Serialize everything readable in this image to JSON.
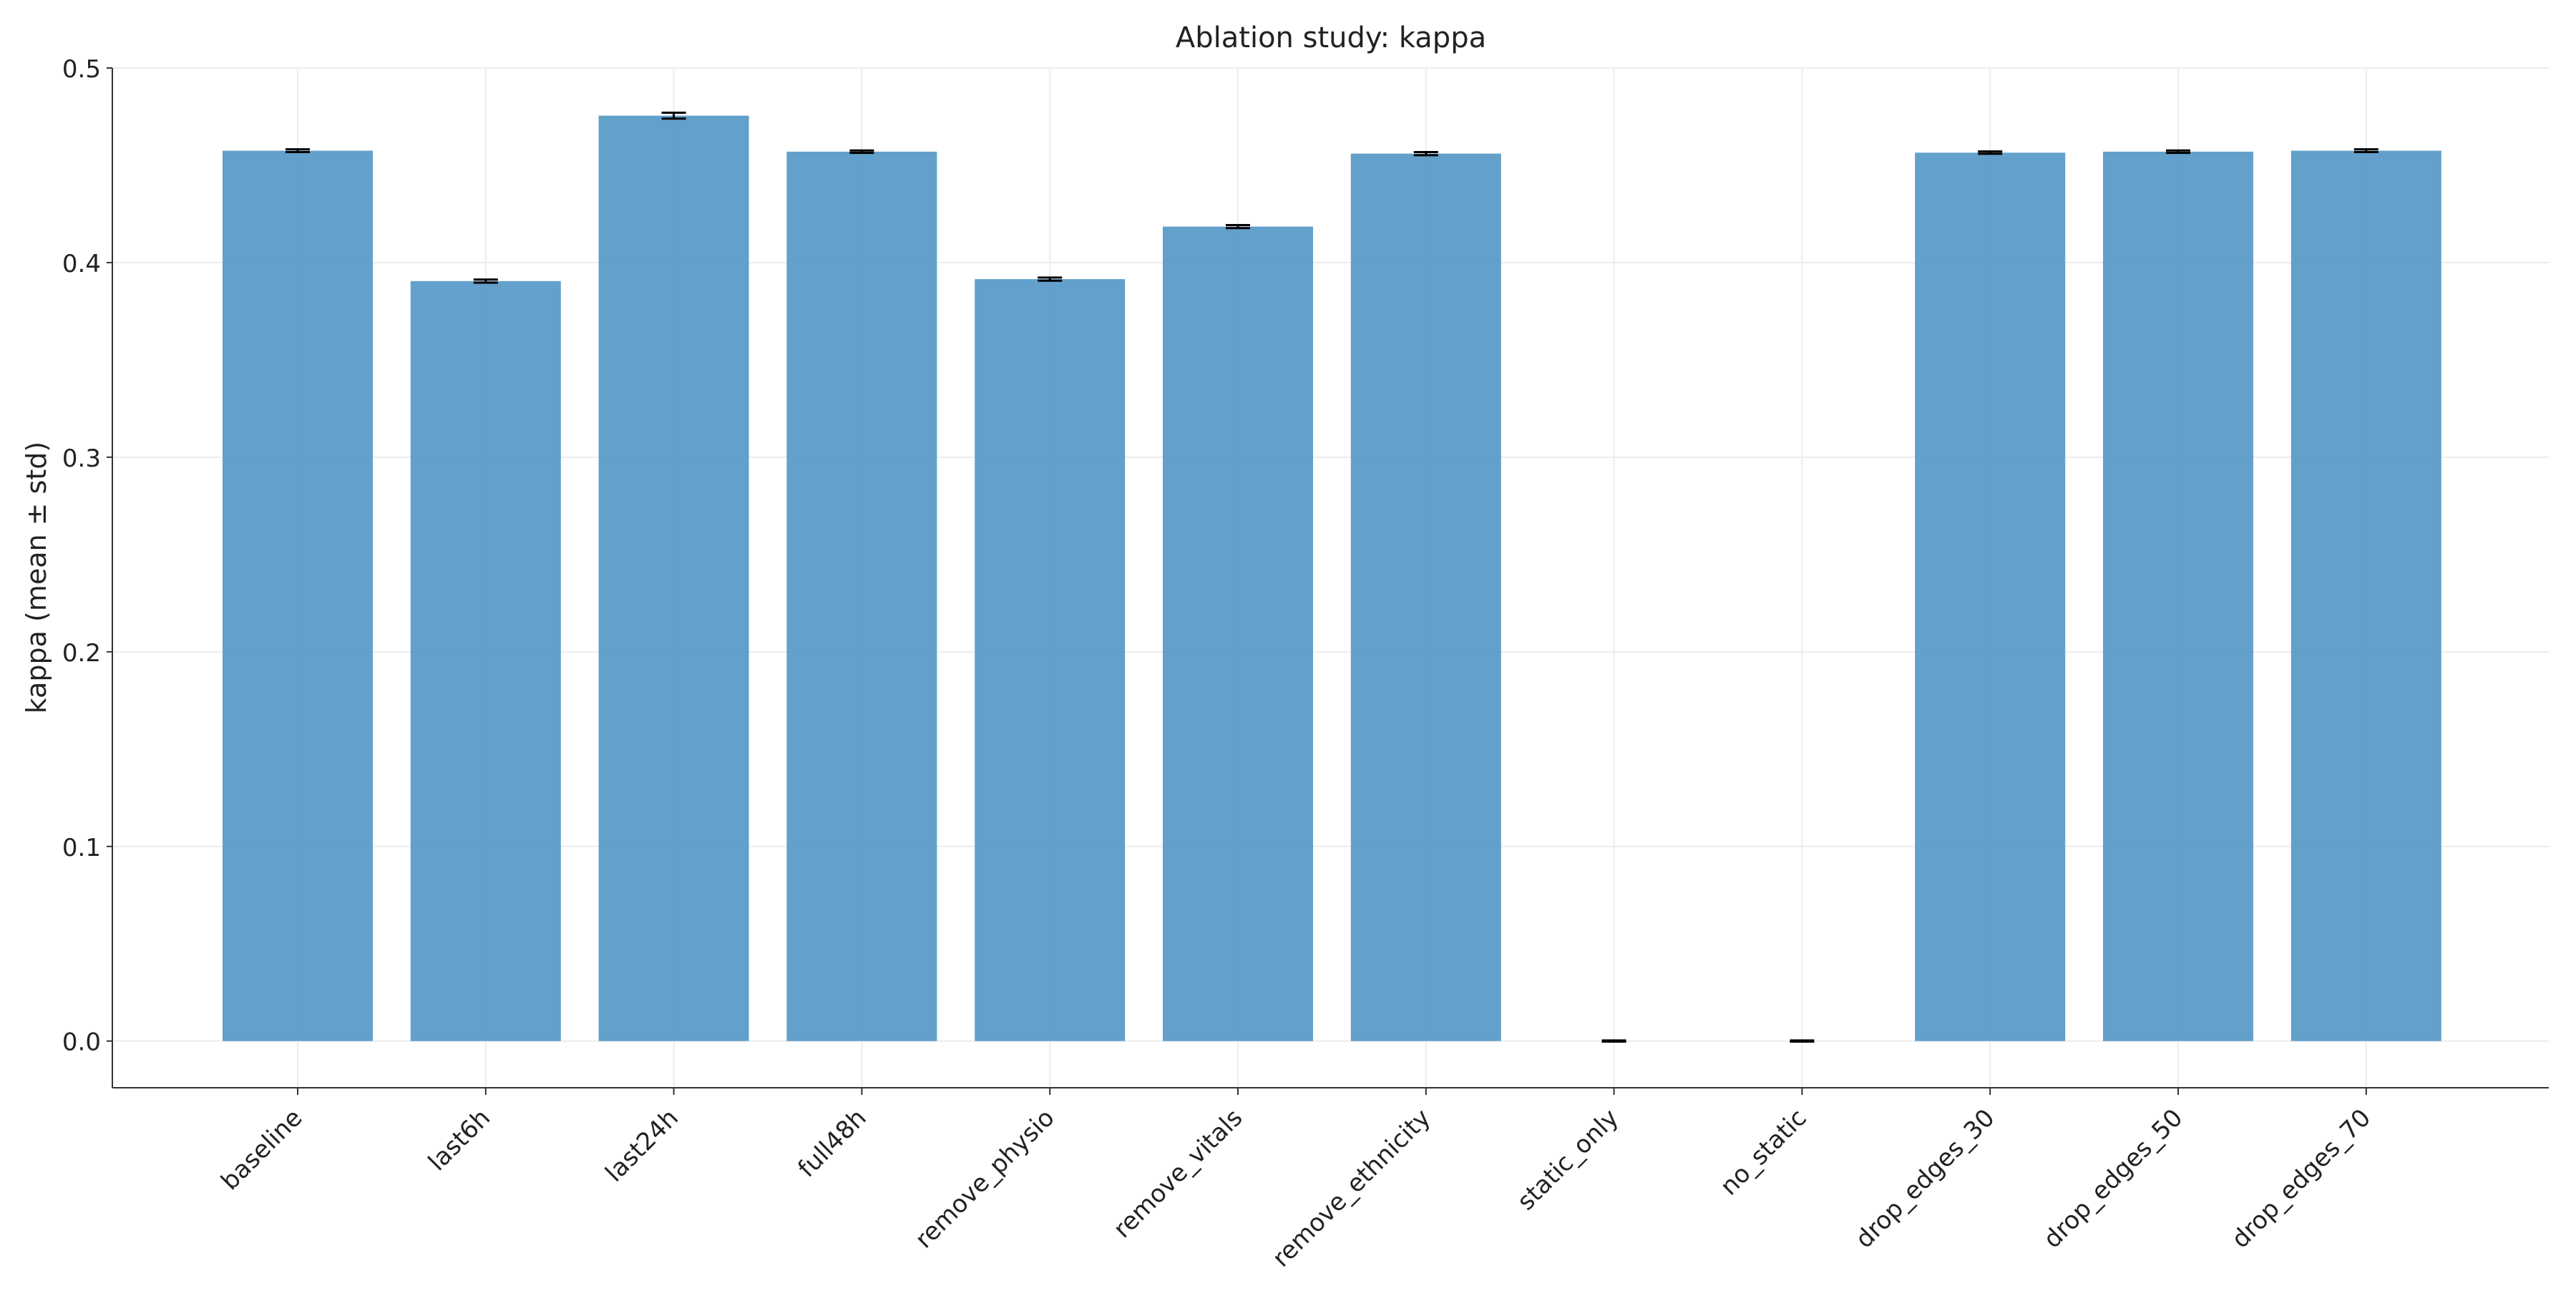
{
  "chart_data": {
    "type": "bar",
    "title": "Ablation study: kappa",
    "xlabel": "",
    "ylabel": "kappa (mean ± std)",
    "categories": [
      "baseline",
      "last6h",
      "last24h",
      "full48h",
      "remove_physio",
      "remove_vitals",
      "remove_ethnicity",
      "static_only",
      "no_static",
      "drop_edges_30",
      "drop_edges_50",
      "drop_edges_70"
    ],
    "values": [
      0.4575,
      0.3905,
      0.4755,
      0.457,
      0.3915,
      0.4185,
      0.456,
      0.0,
      0.0,
      0.4565,
      0.457,
      0.4575
    ],
    "errors": [
      0.0007,
      0.0008,
      0.0015,
      0.0006,
      0.0008,
      0.0008,
      0.0008,
      0.0003,
      0.0003,
      0.0006,
      0.0006,
      0.0007
    ],
    "ylim": [
      -0.024,
      0.5
    ],
    "yticks": [
      0.0,
      0.1,
      0.2,
      0.3,
      0.4,
      0.5
    ],
    "ytick_labels": [
      "0.0",
      "0.1",
      "0.2",
      "0.3",
      "0.4",
      "0.5"
    ],
    "grid": true,
    "bar_color": "#5b9bc8",
    "error_color": "#000000",
    "grid_color": "#ececec",
    "axis_color": "#333333"
  }
}
